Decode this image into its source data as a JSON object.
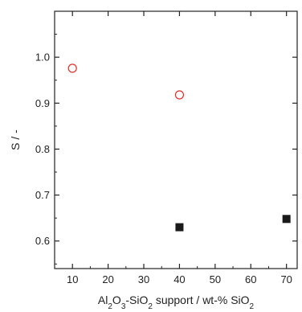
{
  "chart_data": {
    "type": "scatter",
    "title": "",
    "xlabel": "Al2O3-SiO2 support / wt-% SiO2",
    "ylabel": "S / -",
    "xlim": [
      5,
      73
    ],
    "ylim": [
      0.54,
      1.1
    ],
    "xticks": [
      10,
      20,
      30,
      40,
      50,
      60,
      70
    ],
    "yticks": [
      0.6,
      0.7,
      0.8,
      0.9,
      1.0
    ],
    "ytick_labels": [
      "0.6",
      "0.7",
      "0.8",
      "0.9",
      "1.0"
    ],
    "grid": false,
    "series": [
      {
        "marker": "open-circle",
        "color": "#e0302a",
        "points": [
          {
            "x": 10,
            "y": 0.976
          },
          {
            "x": 40,
            "y": 0.918
          }
        ]
      },
      {
        "marker": "filled-square",
        "color": "#1a1a1a",
        "points": [
          {
            "x": 40,
            "y": 0.63
          },
          {
            "x": 70,
            "y": 0.648
          }
        ]
      }
    ]
  }
}
